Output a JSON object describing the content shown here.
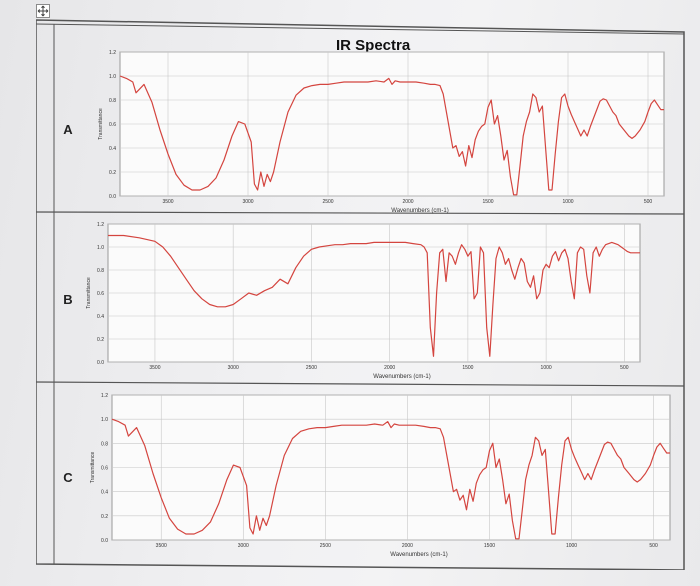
{
  "title": "IR Spectra",
  "row_labels": [
    "A",
    "B",
    "C"
  ],
  "icons": {
    "move_handle": "move-icon"
  },
  "colors": {
    "trace": "#d4453f",
    "grid": "#c8c8c8",
    "table_border": "#555555"
  },
  "chart_data": [
    {
      "type": "line",
      "label": "A",
      "xlabel": "Wavenumbers (cm-1)",
      "ylabel": "Transmittance",
      "x_ticks": [
        3500,
        3000,
        2500,
        2000,
        1500,
        1000,
        500
      ],
      "y_ticks": [
        0.0,
        0.2,
        0.4,
        0.6,
        0.8,
        1.0,
        1.2
      ],
      "xlim": [
        3800,
        400
      ],
      "ylim": [
        0.0,
        1.2
      ],
      "grid": true,
      "series": [
        {
          "x": [
            3800,
            3760,
            3720,
            3700,
            3650,
            3600,
            3550,
            3500,
            3450,
            3400,
            3350,
            3300,
            3250,
            3200,
            3150,
            3100,
            3060,
            3020,
            2980,
            2960,
            2940,
            2920,
            2900,
            2880,
            2860,
            2840,
            2800,
            2750,
            2700,
            2650,
            2600,
            2550,
            2500,
            2450,
            2400,
            2350,
            2300,
            2250,
            2200,
            2150,
            2120,
            2100,
            2080,
            2050,
            2000,
            1950,
            1900,
            1860,
            1830,
            1800,
            1780,
            1760,
            1740,
            1720,
            1700,
            1680,
            1660,
            1640,
            1620,
            1600,
            1580,
            1560,
            1540,
            1520,
            1500,
            1480,
            1460,
            1440,
            1420,
            1400,
            1380,
            1360,
            1340,
            1320,
            1300,
            1280,
            1260,
            1240,
            1220,
            1200,
            1180,
            1160,
            1140,
            1120,
            1100,
            1080,
            1060,
            1040,
            1020,
            1000,
            980,
            960,
            940,
            920,
            900,
            880,
            860,
            840,
            820,
            800,
            780,
            760,
            740,
            720,
            700,
            680,
            650,
            620,
            600,
            580,
            550,
            520,
            500,
            480,
            460,
            440,
            420,
            400
          ],
          "y": [
            1.0,
            0.98,
            0.95,
            0.86,
            0.93,
            0.78,
            0.55,
            0.35,
            0.18,
            0.09,
            0.05,
            0.05,
            0.08,
            0.15,
            0.3,
            0.5,
            0.62,
            0.6,
            0.45,
            0.1,
            0.05,
            0.2,
            0.08,
            0.18,
            0.12,
            0.2,
            0.45,
            0.7,
            0.84,
            0.9,
            0.92,
            0.93,
            0.93,
            0.94,
            0.95,
            0.95,
            0.95,
            0.95,
            0.96,
            0.95,
            0.98,
            0.93,
            0.96,
            0.95,
            0.95,
            0.95,
            0.94,
            0.93,
            0.93,
            0.92,
            0.85,
            0.7,
            0.55,
            0.4,
            0.42,
            0.33,
            0.37,
            0.25,
            0.42,
            0.32,
            0.47,
            0.54,
            0.58,
            0.6,
            0.74,
            0.8,
            0.6,
            0.67,
            0.5,
            0.3,
            0.38,
            0.16,
            0.01,
            0.01,
            0.25,
            0.5,
            0.62,
            0.7,
            0.85,
            0.82,
            0.7,
            0.75,
            0.4,
            0.05,
            0.05,
            0.35,
            0.62,
            0.82,
            0.85,
            0.75,
            0.68,
            0.62,
            0.56,
            0.5,
            0.55,
            0.5,
            0.58,
            0.65,
            0.72,
            0.79,
            0.81,
            0.8,
            0.75,
            0.7,
            0.67,
            0.6,
            0.55,
            0.5,
            0.48,
            0.5,
            0.55,
            0.62,
            0.7,
            0.77,
            0.8,
            0.76,
            0.72,
            0.72
          ]
        }
      ]
    },
    {
      "type": "line",
      "label": "B",
      "xlabel": "Wavenumbers (cm-1)",
      "ylabel": "Transmittance",
      "x_ticks": [
        3500,
        3000,
        2500,
        2000,
        1500,
        1000,
        500
      ],
      "y_ticks": [
        0.0,
        0.2,
        0.4,
        0.6,
        0.8,
        1.0,
        1.2
      ],
      "xlim": [
        3800,
        400
      ],
      "ylim": [
        0.0,
        1.2
      ],
      "grid": true,
      "series": [
        {
          "x": [
            3800,
            3700,
            3600,
            3500,
            3450,
            3400,
            3350,
            3300,
            3250,
            3200,
            3150,
            3100,
            3050,
            3000,
            2950,
            2900,
            2850,
            2800,
            2750,
            2700,
            2650,
            2600,
            2550,
            2500,
            2450,
            2400,
            2350,
            2300,
            2250,
            2200,
            2150,
            2100,
            2050,
            2000,
            1950,
            1900,
            1850,
            1800,
            1780,
            1760,
            1740,
            1720,
            1700,
            1680,
            1660,
            1640,
            1620,
            1600,
            1580,
            1560,
            1540,
            1520,
            1500,
            1480,
            1460,
            1440,
            1420,
            1400,
            1380,
            1360,
            1340,
            1320,
            1300,
            1280,
            1260,
            1240,
            1220,
            1200,
            1180,
            1160,
            1140,
            1120,
            1100,
            1080,
            1060,
            1040,
            1020,
            1000,
            980,
            960,
            940,
            920,
            900,
            880,
            860,
            840,
            820,
            800,
            780,
            760,
            740,
            720,
            700,
            680,
            660,
            640,
            620,
            600,
            580,
            560,
            540,
            520,
            500,
            480,
            460,
            440,
            420,
            400
          ],
          "y": [
            1.1,
            1.1,
            1.08,
            1.05,
            1.0,
            0.92,
            0.82,
            0.72,
            0.62,
            0.55,
            0.5,
            0.48,
            0.48,
            0.5,
            0.55,
            0.6,
            0.58,
            0.62,
            0.65,
            0.72,
            0.68,
            0.82,
            0.92,
            0.98,
            1.0,
            1.01,
            1.02,
            1.02,
            1.03,
            1.03,
            1.03,
            1.04,
            1.04,
            1.04,
            1.04,
            1.04,
            1.03,
            1.02,
            1.0,
            0.95,
            0.3,
            0.05,
            0.6,
            0.95,
            0.98,
            0.7,
            0.95,
            0.92,
            0.85,
            0.95,
            1.02,
            0.98,
            0.92,
            0.96,
            0.55,
            0.6,
            1.0,
            0.95,
            0.3,
            0.05,
            0.5,
            0.9,
            1.0,
            0.95,
            0.85,
            0.9,
            0.8,
            0.72,
            0.82,
            0.9,
            0.86,
            0.7,
            0.65,
            0.75,
            0.55,
            0.6,
            0.8,
            0.85,
            0.82,
            0.92,
            0.96,
            0.88,
            0.95,
            0.98,
            0.9,
            0.7,
            0.55,
            0.95,
            1.0,
            0.98,
            0.75,
            0.6,
            0.95,
            1.0,
            0.92,
            0.98,
            1.02,
            1.03,
            1.04,
            1.03,
            1.02,
            1.0,
            0.98,
            0.96,
            0.95,
            0.95,
            0.95,
            0.95
          ]
        }
      ]
    },
    {
      "type": "line",
      "label": "C",
      "xlabel": "Wavenumbers (cm-1)",
      "ylabel": "Transmittance",
      "x_ticks": [
        3500,
        3000,
        2500,
        2000,
        1500,
        1000,
        500
      ],
      "y_ticks": [
        0.0,
        0.2,
        0.4,
        0.6,
        0.8,
        1.0,
        1.2
      ],
      "xlim": [
        3800,
        400
      ],
      "ylim": [
        0.0,
        1.2
      ],
      "grid": true,
      "series": [
        {
          "x": [
            3800,
            3760,
            3720,
            3700,
            3650,
            3600,
            3550,
            3500,
            3450,
            3400,
            3350,
            3300,
            3250,
            3200,
            3150,
            3100,
            3060,
            3020,
            2980,
            2960,
            2940,
            2920,
            2900,
            2880,
            2860,
            2840,
            2800,
            2750,
            2700,
            2650,
            2600,
            2550,
            2500,
            2450,
            2400,
            2350,
            2300,
            2250,
            2200,
            2150,
            2120,
            2100,
            2080,
            2050,
            2000,
            1950,
            1900,
            1860,
            1830,
            1800,
            1780,
            1760,
            1740,
            1720,
            1700,
            1680,
            1660,
            1640,
            1620,
            1600,
            1580,
            1560,
            1540,
            1520,
            1500,
            1480,
            1460,
            1440,
            1420,
            1400,
            1380,
            1360,
            1340,
            1320,
            1300,
            1280,
            1260,
            1240,
            1220,
            1200,
            1180,
            1160,
            1140,
            1120,
            1100,
            1080,
            1060,
            1040,
            1020,
            1000,
            980,
            960,
            940,
            920,
            900,
            880,
            860,
            840,
            820,
            800,
            780,
            760,
            740,
            720,
            700,
            680,
            650,
            620,
            600,
            580,
            550,
            520,
            500,
            480,
            460,
            440,
            420,
            400
          ],
          "y": [
            1.0,
            0.98,
            0.95,
            0.86,
            0.93,
            0.78,
            0.55,
            0.35,
            0.18,
            0.09,
            0.05,
            0.05,
            0.08,
            0.15,
            0.3,
            0.5,
            0.62,
            0.6,
            0.45,
            0.1,
            0.05,
            0.2,
            0.08,
            0.18,
            0.12,
            0.2,
            0.45,
            0.7,
            0.84,
            0.9,
            0.92,
            0.93,
            0.93,
            0.94,
            0.95,
            0.95,
            0.95,
            0.95,
            0.96,
            0.95,
            0.98,
            0.93,
            0.96,
            0.95,
            0.95,
            0.95,
            0.94,
            0.93,
            0.93,
            0.92,
            0.85,
            0.7,
            0.55,
            0.4,
            0.42,
            0.33,
            0.37,
            0.25,
            0.42,
            0.32,
            0.47,
            0.54,
            0.58,
            0.6,
            0.74,
            0.8,
            0.6,
            0.67,
            0.5,
            0.3,
            0.38,
            0.16,
            0.01,
            0.01,
            0.25,
            0.5,
            0.62,
            0.7,
            0.85,
            0.82,
            0.7,
            0.75,
            0.4,
            0.05,
            0.05,
            0.35,
            0.62,
            0.82,
            0.85,
            0.75,
            0.68,
            0.62,
            0.56,
            0.5,
            0.55,
            0.5,
            0.58,
            0.65,
            0.72,
            0.79,
            0.81,
            0.8,
            0.75,
            0.7,
            0.67,
            0.6,
            0.55,
            0.5,
            0.48,
            0.5,
            0.55,
            0.62,
            0.7,
            0.77,
            0.8,
            0.76,
            0.72,
            0.72
          ]
        }
      ]
    }
  ]
}
